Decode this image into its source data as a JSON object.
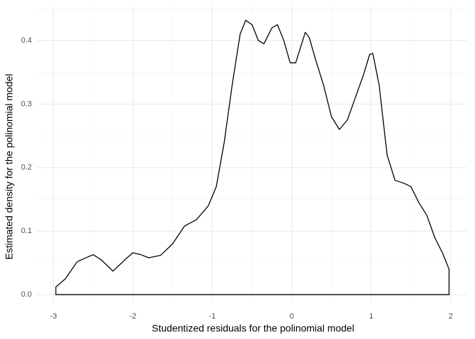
{
  "chart_data": {
    "type": "density",
    "xlabel": "Studentized residuals for the polinomial model",
    "ylabel": "Estimated density for the polinomial model",
    "x": [
      -2.97,
      -2.85,
      -2.7,
      -2.5,
      -2.4,
      -2.25,
      -2.1,
      -2.0,
      -1.9,
      -1.8,
      -1.65,
      -1.5,
      -1.35,
      -1.2,
      -1.05,
      -0.95,
      -0.85,
      -0.75,
      -0.65,
      -0.58,
      -0.5,
      -0.42,
      -0.35,
      -0.25,
      -0.18,
      -0.1,
      -0.02,
      0.05,
      0.1,
      0.17,
      0.22,
      0.3,
      0.4,
      0.5,
      0.6,
      0.7,
      0.8,
      0.9,
      0.98,
      1.02,
      1.1,
      1.2,
      1.3,
      1.42,
      1.5,
      1.6,
      1.7,
      1.8,
      1.9,
      1.98
    ],
    "values": [
      0.012,
      0.025,
      0.052,
      0.063,
      0.055,
      0.037,
      0.055,
      0.066,
      0.063,
      0.058,
      0.062,
      0.08,
      0.108,
      0.118,
      0.14,
      0.17,
      0.24,
      0.33,
      0.41,
      0.432,
      0.425,
      0.4,
      0.395,
      0.42,
      0.425,
      0.4,
      0.365,
      0.365,
      0.385,
      0.413,
      0.405,
      0.37,
      0.33,
      0.28,
      0.26,
      0.275,
      0.31,
      0.345,
      0.378,
      0.38,
      0.33,
      0.22,
      0.18,
      0.175,
      0.17,
      0.145,
      0.125,
      0.09,
      0.065,
      0.04
    ],
    "color": "#000000",
    "xlim": [
      -3.21,
      2.2
    ],
    "xticks": [
      -3,
      -2,
      -1,
      0,
      1,
      2
    ],
    "ylim": [
      -0.012,
      0.455
    ],
    "yticks": [
      {
        "value": 0,
        "label": "0.0"
      },
      0.1,
      0.2,
      0.3,
      0.4
    ],
    "grid": true
  }
}
